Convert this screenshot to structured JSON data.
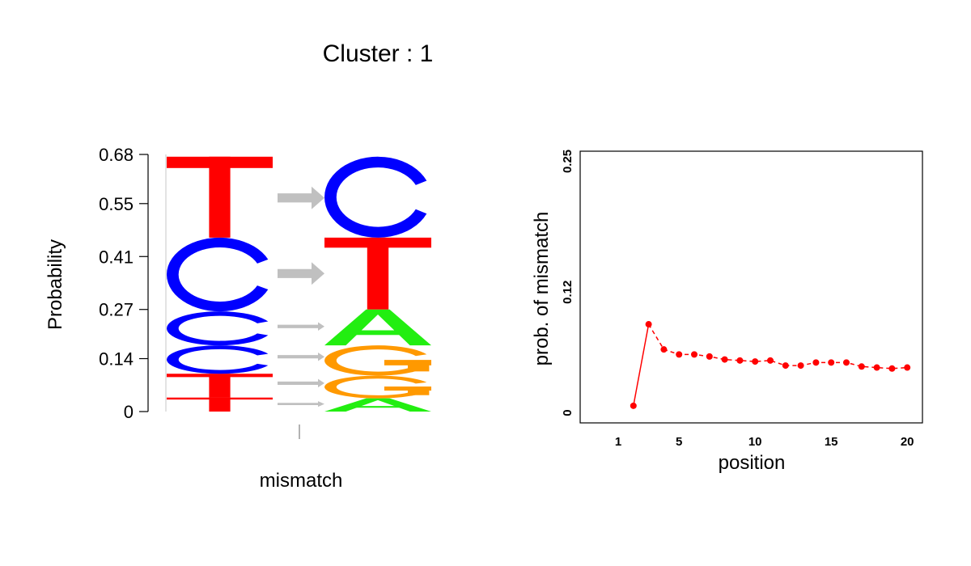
{
  "title": "Cluster : 1",
  "colors": {
    "A": "#22ee11",
    "C": "#0000ff",
    "G": "#ff9900",
    "T": "#ff0000",
    "arrow": "#c0c0c0",
    "line": "#ff0000"
  },
  "chart_data": [
    {
      "type": "sequence-logo",
      "ylabel": "Probability",
      "xlabel": "mismatch",
      "ylim": [
        0,
        0.68
      ],
      "yticks": [
        "0",
        "0.14",
        "0.27",
        "0.41",
        "0.55",
        "0.68"
      ],
      "reference_stack": [
        {
          "letter": "T",
          "from": 0.0,
          "to": 0.037
        },
        {
          "letter": "T",
          "from": 0.037,
          "to": 0.1
        },
        {
          "letter": "C",
          "from": 0.1,
          "to": 0.175
        },
        {
          "letter": "C",
          "from": 0.175,
          "to": 0.265
        },
        {
          "letter": "C",
          "from": 0.265,
          "to": 0.46
        },
        {
          "letter": "T",
          "from": 0.46,
          "to": 0.674
        }
      ],
      "mismatch_stack": [
        {
          "letter": "A",
          "from": 0.0,
          "to": 0.035
        },
        {
          "letter": "G",
          "from": 0.035,
          "to": 0.095
        },
        {
          "letter": "G",
          "from": 0.095,
          "to": 0.175
        },
        {
          "letter": "A",
          "from": 0.175,
          "to": 0.27
        },
        {
          "letter": "T",
          "from": 0.27,
          "to": 0.46
        },
        {
          "letter": "C",
          "from": 0.46,
          "to": 0.674
        }
      ],
      "arrows": [
        {
          "y": 0.02,
          "weight": 1
        },
        {
          "y": 0.075,
          "weight": 1.5
        },
        {
          "y": 0.145,
          "weight": 1.5
        },
        {
          "y": 0.225,
          "weight": 1.5
        },
        {
          "y": 0.365,
          "weight": 4
        },
        {
          "y": 0.565,
          "weight": 4
        }
      ]
    },
    {
      "type": "line",
      "xlabel": "position",
      "ylabel": "prob. of mismatch",
      "xlim": [
        -1.5,
        21
      ],
      "ylim": [
        -0.01,
        0.26
      ],
      "xticks": [
        "1",
        "5",
        "10",
        "15",
        "20"
      ],
      "yticks": [
        "0",
        "0.12",
        "0.25"
      ],
      "x": [
        2,
        3,
        4,
        5,
        6,
        7,
        8,
        9,
        10,
        11,
        12,
        13,
        14,
        15,
        16,
        17,
        18,
        19,
        20
      ],
      "values": [
        0.007,
        0.088,
        0.063,
        0.058,
        0.058,
        0.056,
        0.053,
        0.052,
        0.051,
        0.052,
        0.047,
        0.047,
        0.05,
        0.05,
        0.05,
        0.046,
        0.045,
        0.044,
        0.045
      ]
    }
  ]
}
